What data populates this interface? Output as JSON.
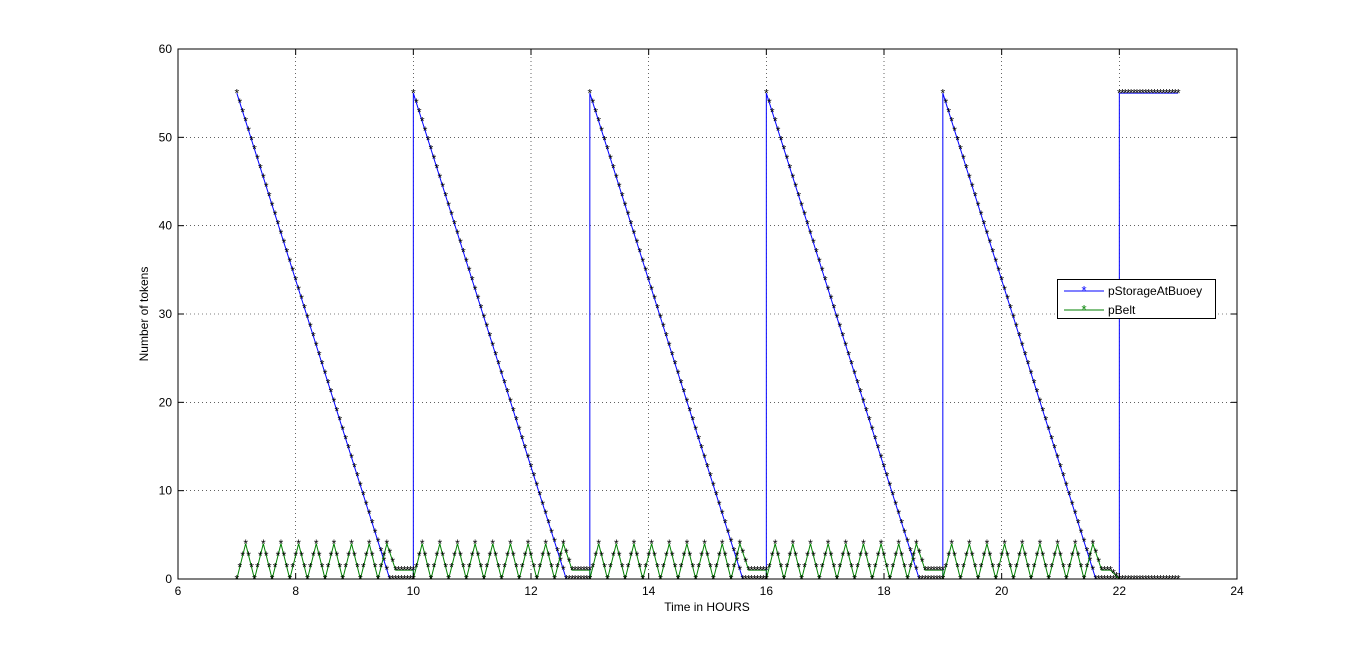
{
  "chart_data": {
    "type": "line",
    "title": "",
    "xlabel": "Time in HOURS",
    "ylabel": "Number of tokens",
    "xlim": [
      6,
      24
    ],
    "ylim": [
      0,
      60
    ],
    "xticks": [
      6,
      8,
      10,
      12,
      14,
      16,
      18,
      20,
      22,
      24
    ],
    "yticks": [
      0,
      10,
      20,
      30,
      40,
      50,
      60
    ],
    "grid": true,
    "legend_position": "right-center",
    "series": [
      {
        "name": "pStorageAtBuoey",
        "color": "#0000ff",
        "marker": "*",
        "points": [
          [
            7.0,
            55
          ],
          [
            9.6,
            0
          ],
          [
            10.0,
            0
          ],
          [
            10.0,
            55
          ],
          [
            12.6,
            0
          ],
          [
            13.0,
            0
          ],
          [
            13.0,
            55
          ],
          [
            15.6,
            0
          ],
          [
            16.0,
            0
          ],
          [
            16.0,
            55
          ],
          [
            18.6,
            0
          ],
          [
            19.0,
            0
          ],
          [
            19.0,
            55
          ],
          [
            21.6,
            0
          ],
          [
            22.0,
            0
          ],
          [
            22.0,
            55
          ],
          [
            23.0,
            55
          ]
        ]
      },
      {
        "name": "pBelt",
        "color": "#008000",
        "marker": "*",
        "points": [
          [
            7.0,
            0
          ],
          [
            7.15,
            4
          ],
          [
            7.3,
            0
          ],
          [
            7.45,
            4
          ],
          [
            7.6,
            0
          ],
          [
            7.75,
            4
          ],
          [
            7.9,
            0
          ],
          [
            8.05,
            4
          ],
          [
            8.2,
            0
          ],
          [
            8.35,
            4
          ],
          [
            8.5,
            0
          ],
          [
            8.65,
            4
          ],
          [
            8.8,
            0
          ],
          [
            8.95,
            4
          ],
          [
            9.1,
            0
          ],
          [
            9.25,
            4
          ],
          [
            9.4,
            0
          ],
          [
            9.55,
            4
          ],
          [
            9.7,
            1
          ],
          [
            10.0,
            1
          ],
          [
            10.0,
            0
          ],
          [
            10.15,
            4
          ],
          [
            10.3,
            0
          ],
          [
            10.45,
            4
          ],
          [
            10.6,
            0
          ],
          [
            10.75,
            4
          ],
          [
            10.9,
            0
          ],
          [
            11.05,
            4
          ],
          [
            11.2,
            0
          ],
          [
            11.35,
            4
          ],
          [
            11.5,
            0
          ],
          [
            11.65,
            4
          ],
          [
            11.8,
            0
          ],
          [
            11.95,
            4
          ],
          [
            12.1,
            0
          ],
          [
            12.25,
            4
          ],
          [
            12.4,
            0
          ],
          [
            12.55,
            4
          ],
          [
            12.7,
            1
          ],
          [
            13.0,
            1
          ],
          [
            13.0,
            0
          ],
          [
            13.15,
            4
          ],
          [
            13.3,
            0
          ],
          [
            13.45,
            4
          ],
          [
            13.6,
            0
          ],
          [
            13.75,
            4
          ],
          [
            13.9,
            0
          ],
          [
            14.05,
            4
          ],
          [
            14.2,
            0
          ],
          [
            14.35,
            4
          ],
          [
            14.5,
            0
          ],
          [
            14.65,
            4
          ],
          [
            14.8,
            0
          ],
          [
            14.95,
            4
          ],
          [
            15.1,
            0
          ],
          [
            15.25,
            4
          ],
          [
            15.4,
            0
          ],
          [
            15.55,
            4
          ],
          [
            15.7,
            1
          ],
          [
            16.0,
            1
          ],
          [
            16.0,
            0
          ],
          [
            16.15,
            4
          ],
          [
            16.3,
            0
          ],
          [
            16.45,
            4
          ],
          [
            16.6,
            0
          ],
          [
            16.75,
            4
          ],
          [
            16.9,
            0
          ],
          [
            17.05,
            4
          ],
          [
            17.2,
            0
          ],
          [
            17.35,
            4
          ],
          [
            17.5,
            0
          ],
          [
            17.65,
            4
          ],
          [
            17.8,
            0
          ],
          [
            17.95,
            4
          ],
          [
            18.1,
            0
          ],
          [
            18.25,
            4
          ],
          [
            18.4,
            0
          ],
          [
            18.55,
            4
          ],
          [
            18.7,
            1
          ],
          [
            19.0,
            1
          ],
          [
            19.0,
            0
          ],
          [
            19.15,
            4
          ],
          [
            19.3,
            0
          ],
          [
            19.45,
            4
          ],
          [
            19.6,
            0
          ],
          [
            19.75,
            4
          ],
          [
            19.9,
            0
          ],
          [
            20.05,
            4
          ],
          [
            20.2,
            0
          ],
          [
            20.35,
            4
          ],
          [
            20.5,
            0
          ],
          [
            20.65,
            4
          ],
          [
            20.8,
            0
          ],
          [
            20.95,
            4
          ],
          [
            21.1,
            0
          ],
          [
            21.25,
            4
          ],
          [
            21.4,
            0
          ],
          [
            21.55,
            4
          ],
          [
            21.7,
            1
          ],
          [
            21.85,
            1
          ],
          [
            22.0,
            0
          ],
          [
            23.0,
            0
          ]
        ]
      }
    ]
  }
}
